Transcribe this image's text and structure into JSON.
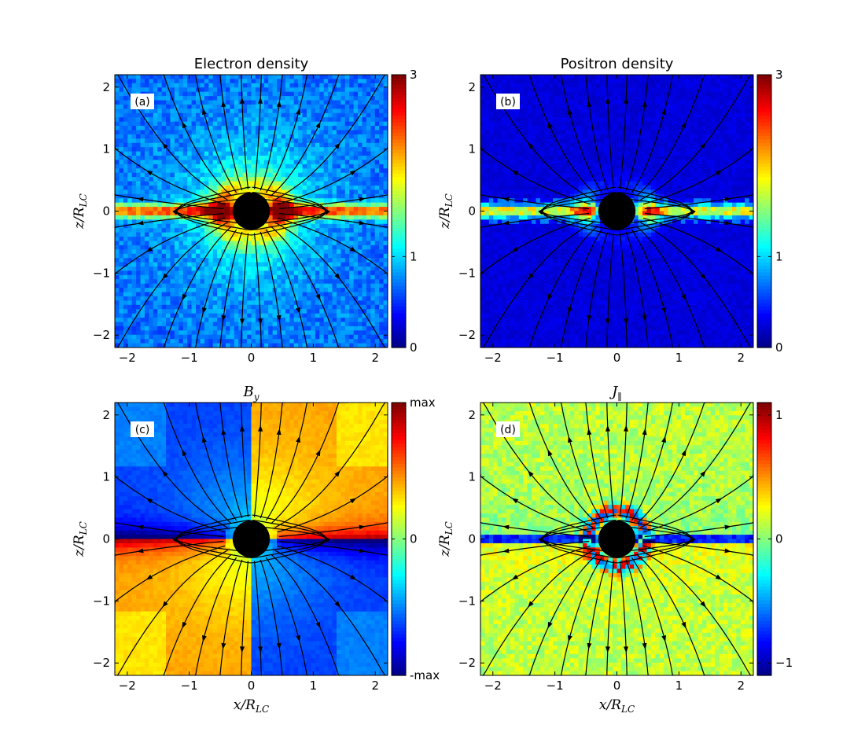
{
  "chart_data": [
    {
      "type": "heatmap",
      "panel_label": "(a)",
      "title": "Electron density",
      "title_math": false,
      "xlabel": "x/R_LC",
      "ylabel": "z/R_LC",
      "show_xlabel": false,
      "xlim": [
        -2.2,
        2.2
      ],
      "ylim": [
        -2.2,
        2.2
      ],
      "xticks": [
        -2,
        -1,
        0,
        1,
        2
      ],
      "yticks": [
        -2,
        -1,
        0,
        1,
        2
      ],
      "colorbar": {
        "range": [
          0,
          3
        ],
        "ticks": [
          {
            "value": 0,
            "label": "0"
          },
          {
            "value": 1,
            "label": "1"
          },
          {
            "value": 3,
            "label": "3"
          }
        ]
      },
      "field_kind": "electron",
      "stream_kind": "density"
    },
    {
      "type": "heatmap",
      "panel_label": "(b)",
      "title": "Positron density",
      "title_math": false,
      "xlabel": "x/R_LC",
      "ylabel": "z/R_LC",
      "show_xlabel": false,
      "xlim": [
        -2.2,
        2.2
      ],
      "ylim": [
        -2.2,
        2.2
      ],
      "xticks": [
        -2,
        -1,
        0,
        1,
        2
      ],
      "yticks": [
        -2,
        -1,
        0,
        1,
        2
      ],
      "colorbar": {
        "range": [
          0,
          3
        ],
        "ticks": [
          {
            "value": 0,
            "label": "0"
          },
          {
            "value": 1,
            "label": "1"
          },
          {
            "value": 3,
            "label": "3"
          }
        ]
      },
      "field_kind": "positron",
      "stream_kind": "density"
    },
    {
      "type": "heatmap",
      "panel_label": "(c)",
      "title": "B_y",
      "title_math": true,
      "xlabel": "x/R_LC",
      "ylabel": "z/R_LC",
      "show_xlabel": true,
      "xlim": [
        -2.2,
        2.2
      ],
      "ylim": [
        -2.2,
        2.2
      ],
      "xticks": [
        -2,
        -1,
        0,
        1,
        2
      ],
      "yticks": [
        -2,
        -1,
        0,
        1,
        2
      ],
      "colorbar": {
        "range": [
          -1,
          1
        ],
        "ticks": [
          {
            "value": -1,
            "label": "-max"
          },
          {
            "value": 0,
            "label": "0"
          },
          {
            "value": 1,
            "label": "max"
          }
        ]
      },
      "field_kind": "by",
      "stream_kind": "field"
    },
    {
      "type": "heatmap",
      "panel_label": "(d)",
      "title": "J_∥",
      "title_math": true,
      "xlabel": "x/R_LC",
      "ylabel": "z/R_LC",
      "show_xlabel": true,
      "xlim": [
        -2.2,
        2.2
      ],
      "ylim": [
        -2.2,
        2.2
      ],
      "xticks": [
        -2,
        -1,
        0,
        1,
        2
      ],
      "yticks": [
        -2,
        -1,
        0,
        1,
        2
      ],
      "colorbar": {
        "range": [
          -1.1,
          1.1
        ],
        "ticks": [
          {
            "value": -1,
            "label": "−1"
          },
          {
            "value": 0,
            "label": "0"
          },
          {
            "value": 1,
            "label": "1"
          }
        ]
      },
      "field_kind": "jpar",
      "stream_kind": "field"
    }
  ],
  "star": {
    "radius": 0.3,
    "color": "#000000"
  },
  "colormap": "jet"
}
